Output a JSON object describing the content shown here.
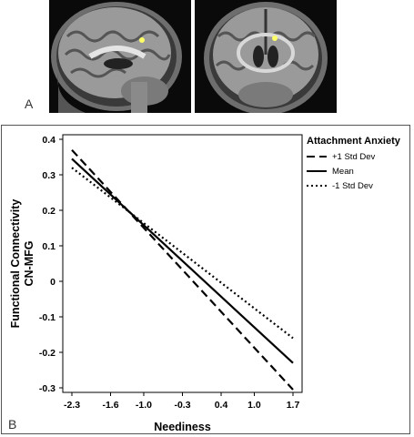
{
  "panel_a": {
    "label": "A"
  },
  "panel_b": {
    "label": "B"
  },
  "chart_data": {
    "type": "line",
    "xlabel": "Neediness",
    "ylabel_line1": "Functional Connectivity",
    "ylabel_line2": "CN-MFG",
    "x_ticks": [
      "-2.3",
      "-1.6",
      "-1.0",
      "-0.3",
      "0.4",
      "1.0",
      "1.7"
    ],
    "y_ticks": [
      "0.4",
      "0.3",
      "0.2",
      "0.1",
      "0",
      "-0.1",
      "-0.2",
      "-0.3"
    ],
    "xlim": [
      -2.3,
      1.7
    ],
    "ylim": [
      -0.3,
      0.4
    ],
    "grid": false,
    "legend": {
      "title": "Attachment Anxiety",
      "placement": "top-right"
    },
    "series": [
      {
        "name": "+1 Std Dev",
        "style": "dashed",
        "x": [
          -2.3,
          1.7
        ],
        "y": [
          0.37,
          -0.305
        ]
      },
      {
        "name": "Mean",
        "style": "solid",
        "x": [
          -2.3,
          1.7
        ],
        "y": [
          0.345,
          -0.23
        ]
      },
      {
        "name": "-1 Std Dev",
        "style": "dotted",
        "x": [
          -2.3,
          1.7
        ],
        "y": [
          0.32,
          -0.16
        ]
      }
    ]
  }
}
